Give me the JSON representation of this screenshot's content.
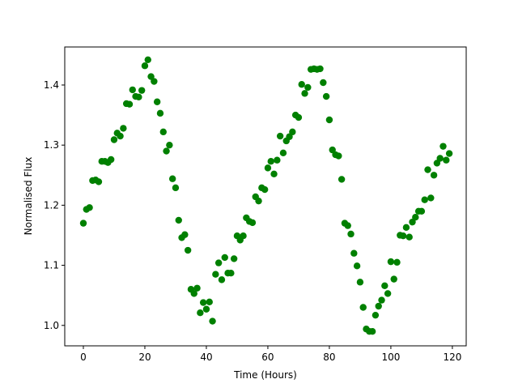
{
  "chart_data": {
    "type": "scatter",
    "xlabel": "Time (Hours)",
    "ylabel": "Normalised Flux",
    "color": "#008000",
    "xlim": [
      -6.05,
      124.5
    ],
    "ylim": [
      0.966,
      1.4633
    ],
    "xticks": [
      0,
      20,
      40,
      60,
      80,
      100,
      120
    ],
    "yticks": [
      {
        "value": 1,
        "label": "1.0"
      },
      1.1,
      1.2,
      1.3,
      1.4
    ],
    "x": [
      0,
      1,
      2,
      3,
      4,
      5,
      6,
      7,
      8,
      9,
      10,
      11,
      12,
      13,
      14,
      15,
      16,
      17,
      18,
      19,
      20,
      21,
      22,
      23,
      24,
      25,
      26,
      27,
      28,
      29,
      30,
      31,
      32,
      33,
      34,
      35,
      36,
      37,
      38,
      39,
      40,
      41,
      42,
      43,
      44,
      45,
      46,
      47,
      48,
      49,
      50,
      51,
      52,
      53,
      54,
      55,
      56,
      57,
      58,
      59,
      60,
      61,
      62,
      63,
      64,
      65,
      66,
      67,
      68,
      69,
      70,
      71,
      72,
      73,
      74,
      75,
      76,
      77,
      78,
      79,
      80,
      81,
      82,
      83,
      84,
      85,
      86,
      87,
      88,
      89,
      90,
      91,
      92,
      93,
      94,
      95,
      96,
      97,
      98,
      99,
      100,
      101,
      102,
      103,
      104,
      105,
      106,
      107,
      108,
      109,
      110,
      111,
      112,
      113,
      114,
      115,
      116,
      117,
      118,
      119
    ],
    "values": [
      1.17,
      1.193,
      1.196,
      1.241,
      1.242,
      1.239,
      1.273,
      1.273,
      1.271,
      1.276,
      1.309,
      1.32,
      1.315,
      1.328,
      1.369,
      1.368,
      1.392,
      1.381,
      1.38,
      1.391,
      1.432,
      1.442,
      1.414,
      1.406,
      1.372,
      1.353,
      1.322,
      1.29,
      1.3,
      1.244,
      1.229,
      1.175,
      1.146,
      1.151,
      1.125,
      1.06,
      1.053,
      1.062,
      1.021,
      1.038,
      1.027,
      1.039,
      1.007,
      1.085,
      1.104,
      1.076,
      1.113,
      1.087,
      1.087,
      1.111,
      1.149,
      1.142,
      1.149,
      1.179,
      1.173,
      1.171,
      1.214,
      1.207,
      1.229,
      1.226,
      1.262,
      1.273,
      1.252,
      1.275,
      1.315,
      1.287,
      1.307,
      1.314,
      1.322,
      1.35,
      1.346,
      1.401,
      1.386,
      1.396,
      1.426,
      1.427,
      1.426,
      1.427,
      1.404,
      1.381,
      1.342,
      1.292,
      1.284,
      1.282,
      1.243,
      1.17,
      1.166,
      1.152,
      1.12,
      1.099,
      1.072,
      1.03,
      0.994,
      0.99,
      0.99,
      1.017,
      1.032,
      1.042,
      1.066,
      1.053,
      1.106,
      1.077,
      1.105,
      1.15,
      1.149,
      1.163,
      1.147,
      1.172,
      1.18,
      1.19,
      1.19,
      1.209,
      1.259,
      1.212,
      1.25,
      1.27,
      1.278,
      1.298,
      1.275,
      1.286
    ]
  }
}
